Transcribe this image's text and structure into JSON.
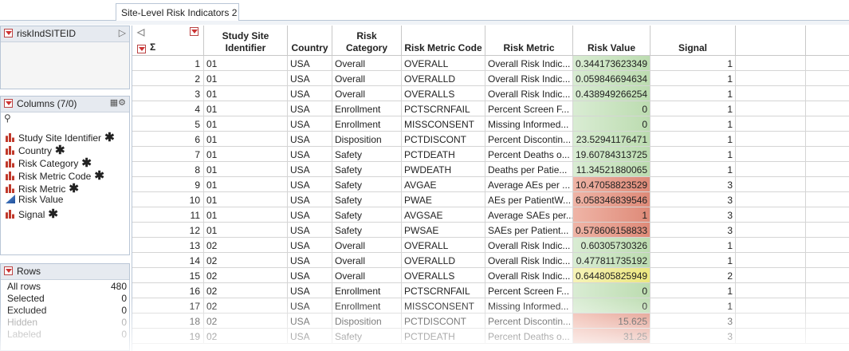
{
  "tab": "Site-Level Risk Indicators 2",
  "left_panel": {
    "table_script": "riskIndSITEID",
    "columns_header": "Columns (7/0)",
    "columns": [
      {
        "name": "Study Site Identifier",
        "type": "nominal"
      },
      {
        "name": "Country",
        "type": "nominal"
      },
      {
        "name": "Risk Category",
        "type": "nominal"
      },
      {
        "name": "Risk Metric Code",
        "type": "nominal"
      },
      {
        "name": "Risk Metric",
        "type": "nominal"
      },
      {
        "name": "Risk Value",
        "type": "continuous"
      },
      {
        "name": "Signal",
        "type": "nominal"
      }
    ],
    "rows_header": "Rows",
    "rows_stats": [
      {
        "label": "All rows",
        "value": 480
      },
      {
        "label": "Selected",
        "value": 0
      },
      {
        "label": "Excluded",
        "value": 0
      },
      {
        "label": "Hidden",
        "value": 0
      },
      {
        "label": "Labeled",
        "value": 0
      }
    ]
  },
  "table": {
    "headers": [
      "Study Site Identifier",
      "Country",
      "Risk Category",
      "Risk Metric Code",
      "Risk Metric",
      "Risk Value",
      "Signal"
    ],
    "rows": [
      [
        1,
        "01",
        "USA",
        "Overall",
        "OVERALL",
        "Overall Risk Indic...",
        0.344173623349,
        1
      ],
      [
        2,
        "01",
        "USA",
        "Overall",
        "OVERALLD",
        "Overall Risk Indic...",
        0.059846694634,
        1
      ],
      [
        3,
        "01",
        "USA",
        "Overall",
        "OVERALLS",
        "Overall Risk Indic...",
        0.438949266254,
        1
      ],
      [
        4,
        "01",
        "USA",
        "Enrollment",
        "PCTSCRNFAIL",
        "Percent Screen F...",
        0,
        1
      ],
      [
        5,
        "01",
        "USA",
        "Enrollment",
        "MISSCONSENT",
        "Missing Informed...",
        0,
        1
      ],
      [
        6,
        "01",
        "USA",
        "Disposition",
        "PCTDISCONT",
        "Percent Discontin...",
        23.52941176471,
        1
      ],
      [
        7,
        "01",
        "USA",
        "Safety",
        "PCTDEATH",
        "Percent Deaths o...",
        19.60784313725,
        1
      ],
      [
        8,
        "01",
        "USA",
        "Safety",
        "PWDEATH",
        "Deaths per Patie...",
        11.34521880065,
        1
      ],
      [
        9,
        "01",
        "USA",
        "Safety",
        "AVGAE",
        "Average AEs per ...",
        10.47058823529,
        3
      ],
      [
        10,
        "01",
        "USA",
        "Safety",
        "PWAE",
        "AEs per PatientW...",
        6.058346839546,
        3
      ],
      [
        11,
        "01",
        "USA",
        "Safety",
        "AVGSAE",
        "Average SAEs per...",
        1,
        3
      ],
      [
        12,
        "01",
        "USA",
        "Safety",
        "PWSAE",
        "SAEs per Patient...",
        0.578606158833,
        3
      ],
      [
        13,
        "02",
        "USA",
        "Overall",
        "OVERALL",
        "Overall Risk Indic...",
        0.60305730326,
        1
      ],
      [
        14,
        "02",
        "USA",
        "Overall",
        "OVERALLD",
        "Overall Risk Indic...",
        0.477811735192,
        1
      ],
      [
        15,
        "02",
        "USA",
        "Overall",
        "OVERALLS",
        "Overall Risk Indic...",
        0.644805825949,
        2
      ],
      [
        16,
        "02",
        "USA",
        "Enrollment",
        "PCTSCRNFAIL",
        "Percent Screen F...",
        0,
        1
      ],
      [
        17,
        "02",
        "USA",
        "Enrollment",
        "MISSCONSENT",
        "Missing Informed...",
        0,
        1
      ],
      [
        18,
        "02",
        "USA",
        "Disposition",
        "PCTDISCONT",
        "Percent Discontin...",
        15.625,
        3
      ],
      [
        19,
        "02",
        "USA",
        "Safety",
        "PCTDEATH",
        "Percent Deaths o...",
        31.25,
        3
      ]
    ]
  }
}
